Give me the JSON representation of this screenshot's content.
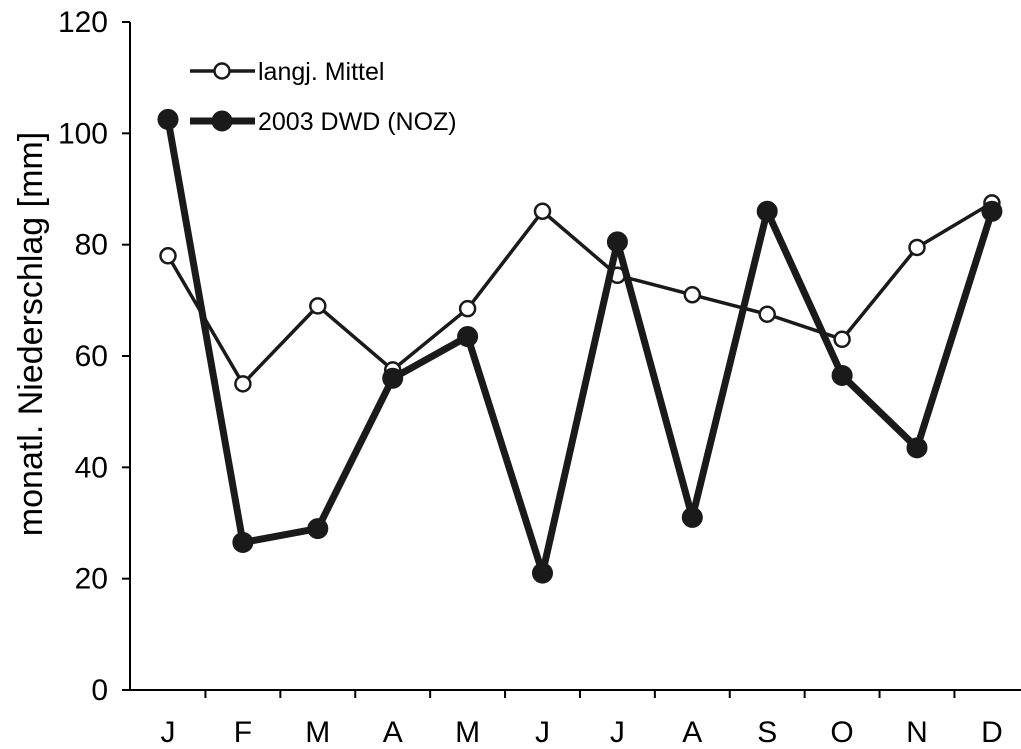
{
  "chart_data": {
    "type": "line",
    "categories": [
      "J",
      "F",
      "M",
      "A",
      "M",
      "J",
      "J",
      "A",
      "S",
      "O",
      "N",
      "D"
    ],
    "ylabel": "monatl. Niederschlag [mm]",
    "xlabel": "",
    "ylim": [
      0,
      120
    ],
    "yticks": [
      0,
      20,
      40,
      60,
      80,
      100,
      120
    ],
    "grid": false,
    "legend_position": "top-left",
    "series": [
      {
        "name": "langj. Mittel",
        "marker": "open-circle",
        "color": "#1a1a1a",
        "values": [
          78,
          55,
          69,
          57.5,
          68.5,
          86,
          74.5,
          71,
          67.5,
          63,
          79.5,
          87.5
        ]
      },
      {
        "name": "2003 DWD (NOZ)",
        "marker": "filled-circle",
        "color": "#1a1a1a",
        "values": [
          102.5,
          26.5,
          29,
          56,
          63.5,
          21,
          80.5,
          31,
          86,
          56.5,
          43.5,
          86
        ]
      }
    ]
  }
}
